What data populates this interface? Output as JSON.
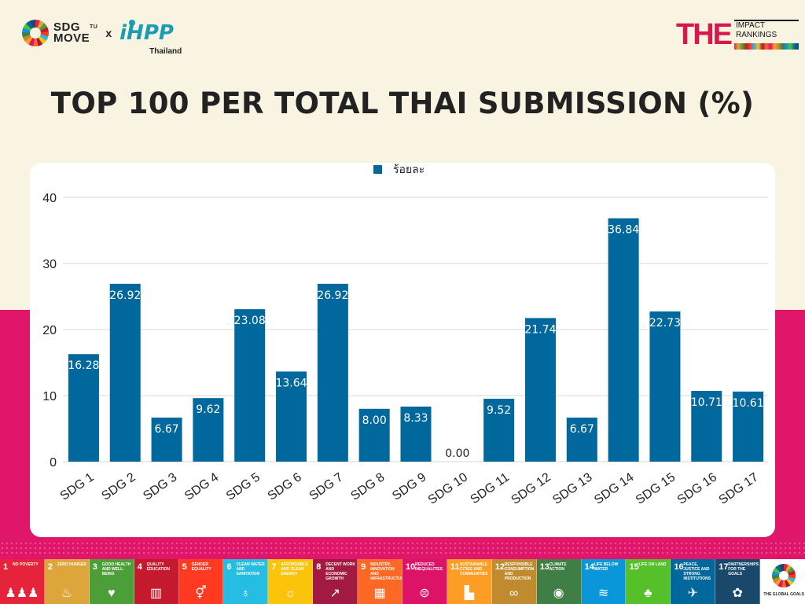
{
  "header": {
    "logo_left_text": "SDG MOVE",
    "logo_left_tm": "TU",
    "logo_cross": "x",
    "logo_ihpp": "iHPP",
    "logo_ihpp_sub": "Thailand",
    "logo_right_the": "THE",
    "logo_right_line1": "IMPACT",
    "logo_right_line2": "RANKINGS"
  },
  "title": "TOP 100 PER TOTAL THAI SUBMISSION (%)",
  "colors": {
    "bar": "#00689d",
    "background_top": "#f9f4e1",
    "background_bottom": "#e0166a",
    "grid": "#d9d9d9"
  },
  "chart_data": {
    "type": "bar",
    "title": "",
    "xlabel": "",
    "ylabel": "",
    "legend": {
      "label": "ร้อยละ",
      "position": "top-center"
    },
    "categories": [
      "SDG 1",
      "SDG 2",
      "SDG 3",
      "SDG 4",
      "SDG 5",
      "SDG 6",
      "SDG 7",
      "SDG 8",
      "SDG 9",
      "SDG 10",
      "SDG 11",
      "SDG 12",
      "SDG 13",
      "SDG 14",
      "SDG 15",
      "SDG 16",
      "SDG 17"
    ],
    "series": [
      {
        "name": "ร้อยละ",
        "values": [
          16.28,
          26.92,
          6.67,
          9.62,
          23.08,
          13.64,
          26.92,
          8.0,
          8.33,
          0.0,
          9.52,
          21.74,
          6.67,
          36.84,
          22.73,
          10.71,
          10.61
        ]
      }
    ],
    "value_labels": [
      "16.28",
      "26.92",
      "6.67",
      "9.62",
      "23.08",
      "13.64",
      "26.92",
      "8.00",
      "8.33",
      "0.00",
      "9.52",
      "21.74",
      "6.67",
      "36.84",
      "22.73",
      "10.71",
      "10.61"
    ],
    "y_ticks": [
      0,
      10,
      20,
      30,
      40
    ],
    "ylim": [
      0,
      40
    ],
    "grid": true
  },
  "sdg_strip": [
    {
      "num": "1",
      "label": "No Poverty",
      "color": "#e5243b",
      "icon": "♟♟♟"
    },
    {
      "num": "2",
      "label": "Zero Hunger",
      "color": "#dda63a",
      "icon": "♨"
    },
    {
      "num": "3",
      "label": "Good Health and Well-Being",
      "color": "#4c9f38",
      "icon": "♥"
    },
    {
      "num": "4",
      "label": "Quality Education",
      "color": "#c5192d",
      "icon": "▥"
    },
    {
      "num": "5",
      "label": "Gender Equality",
      "color": "#ff3a21",
      "icon": "⚥"
    },
    {
      "num": "6",
      "label": "Clean Water and Sanitation",
      "color": "#26bde2",
      "icon": "♁"
    },
    {
      "num": "7",
      "label": "Affordable and Clean Energy",
      "color": "#fcc30b",
      "icon": "☼"
    },
    {
      "num": "8",
      "label": "Decent Work and Economic Growth",
      "color": "#a21942",
      "icon": "↗"
    },
    {
      "num": "9",
      "label": "Industry, Innovation and Infrastructure",
      "color": "#fd6925",
      "icon": "▦"
    },
    {
      "num": "10",
      "label": "Reduced Inequalities",
      "color": "#dd1367",
      "icon": "⊜"
    },
    {
      "num": "11",
      "label": "Sustainable Cities and Communities",
      "color": "#fd9d24",
      "icon": "▙"
    },
    {
      "num": "12",
      "label": "Responsible Consumption and Production",
      "color": "#bf8b2e",
      "icon": "∞"
    },
    {
      "num": "13",
      "label": "Climate Action",
      "color": "#3f7e44",
      "icon": "◉"
    },
    {
      "num": "14",
      "label": "Life Below Water",
      "color": "#0a97d9",
      "icon": "≋"
    },
    {
      "num": "15",
      "label": "Life on Land",
      "color": "#56c02b",
      "icon": "♣"
    },
    {
      "num": "16",
      "label": "Peace, Justice and Strong Institutions",
      "color": "#00689d",
      "icon": "✈"
    },
    {
      "num": "17",
      "label": "Partnerships for the Goals",
      "color": "#19486a",
      "icon": "✿"
    }
  ],
  "sdg_strip_end_label": "The Global Goals"
}
